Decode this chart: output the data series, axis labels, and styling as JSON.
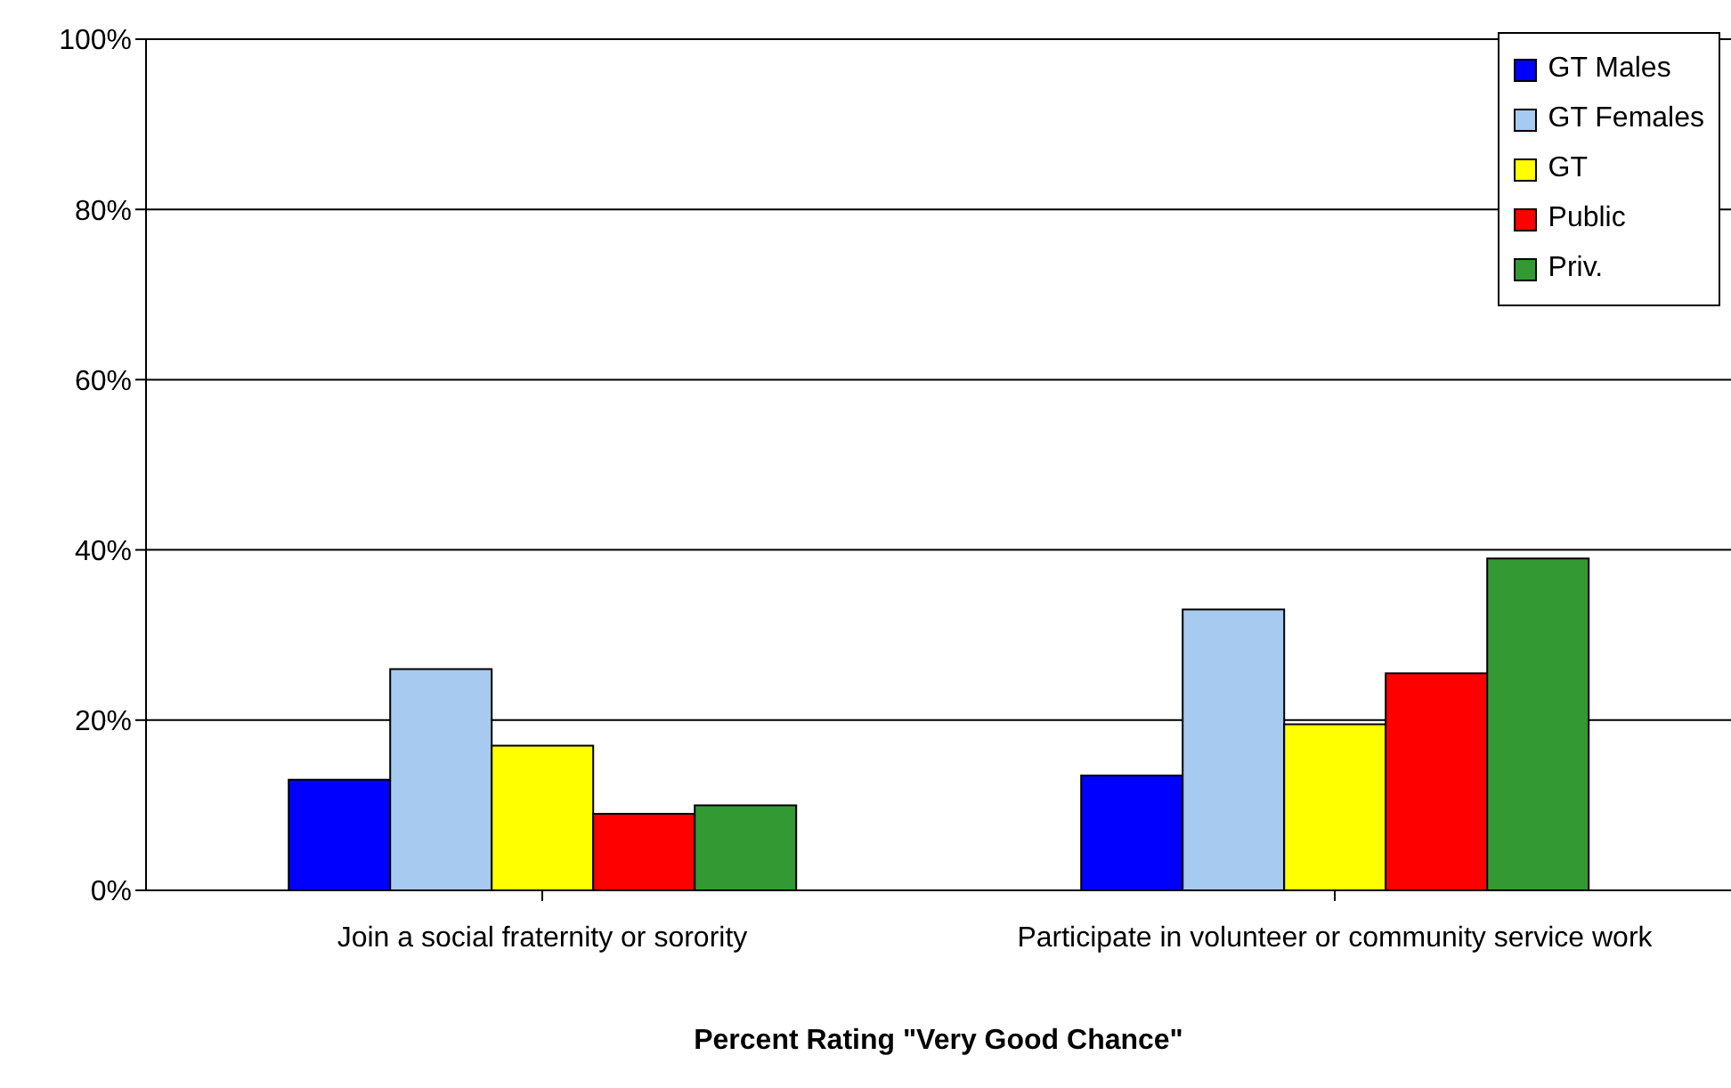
{
  "chart_data": {
    "type": "bar",
    "xlabel": "Percent Rating \"Very Good Chance\"",
    "categories": [
      "Join a social fraternity or sorority",
      "Participate in volunteer or community service work"
    ],
    "series": [
      {
        "name": "GT Males",
        "color": "#0000ff",
        "values": [
          13,
          13.5
        ]
      },
      {
        "name": "GT Females",
        "color": "#a6caf0",
        "values": [
          26,
          33
        ]
      },
      {
        "name": "GT",
        "color": "#ffff00",
        "values": [
          17,
          19.5
        ]
      },
      {
        "name": "Public",
        "color": "#ff0000",
        "values": [
          9,
          25.5
        ]
      },
      {
        "name": "Priv.",
        "color": "#339933",
        "values": [
          10,
          39
        ]
      }
    ],
    "ylim": [
      0,
      100
    ],
    "yticks": [
      {
        "value": 0,
        "label": "0%"
      },
      {
        "value": 20,
        "label": "20%"
      },
      {
        "value": 40,
        "label": "40%"
      },
      {
        "value": 60,
        "label": "60%"
      },
      {
        "value": 80,
        "label": "80%"
      },
      {
        "value": 100,
        "label": "100%"
      }
    ],
    "grid": "y",
    "legend": "top right"
  }
}
